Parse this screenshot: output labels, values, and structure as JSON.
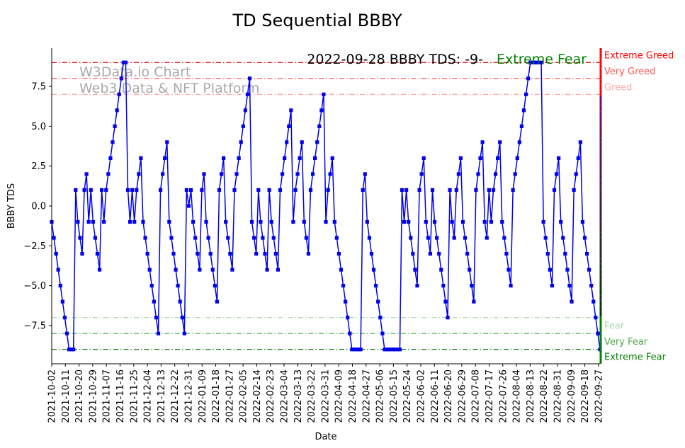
{
  "chart_data": {
    "type": "line",
    "title": "TD Sequential BBBY",
    "xlabel": "Date",
    "ylabel": "BBBY TDS",
    "ylim": [
      -9.9,
      9.9
    ],
    "yticks": [
      -7.5,
      -5.0,
      -2.5,
      0.0,
      2.5,
      5.0,
      7.5
    ],
    "ytick_labels": [
      "−7.5",
      "−5.0",
      "−2.5",
      "0.0",
      "2.5",
      "5.0",
      "7.5"
    ],
    "xtick_labels": [
      "2021-10-02",
      "2021-10-11",
      "2021-10-20",
      "2021-10-29",
      "2021-11-07",
      "2021-11-16",
      "2021-11-25",
      "2021-12-04",
      "2021-12-13",
      "2021-12-22",
      "2021-12-31",
      "2022-01-09",
      "2022-01-18",
      "2022-01-27",
      "2022-02-05",
      "2022-02-14",
      "2022-02-23",
      "2022-03-04",
      "2022-03-13",
      "2022-03-22",
      "2022-03-31",
      "2022-04-09",
      "2022-04-18",
      "2022-04-27",
      "2022-05-06",
      "2022-05-15",
      "2022-05-24",
      "2022-06-02",
      "2022-06-11",
      "2022-06-20",
      "2022-06-29",
      "2022-07-08",
      "2022-07-17",
      "2022-07-26",
      "2022-08-04",
      "2022-08-13",
      "2022-08-22",
      "2022-08-31",
      "2022-09-09",
      "2022-09-18",
      "2022-09-27"
    ],
    "x_start": "2021-10-02",
    "x_end": "2022-09-28",
    "series": [
      {
        "name": "BBBY TDS",
        "color": "#0000ee",
        "marker": "square",
        "values": [
          -1,
          -2,
          -3,
          -4,
          -5,
          -6,
          -7,
          -8,
          -9,
          -9,
          -9,
          1,
          -1,
          -2,
          -3,
          1,
          2,
          -1,
          1,
          -1,
          -2,
          -3,
          -4,
          1,
          -1,
          1,
          2,
          3,
          4,
          5,
          6,
          7,
          8,
          9,
          9,
          1,
          -1,
          1,
          -1,
          1,
          2,
          3,
          -1,
          -2,
          -3,
          -4,
          -5,
          -6,
          -7,
          -8,
          1,
          2,
          3,
          4,
          -1,
          -2,
          -3,
          -4,
          -5,
          -6,
          -7,
          -8,
          1,
          0,
          1,
          -1,
          -2,
          -3,
          -4,
          1,
          2,
          -1,
          -2,
          -3,
          -4,
          -5,
          -6,
          1,
          2,
          3,
          -1,
          -2,
          -3,
          -4,
          1,
          2,
          3,
          4,
          5,
          6,
          7,
          8,
          -1,
          -2,
          -3,
          1,
          -1,
          -2,
          -3,
          -4,
          1,
          -1,
          -2,
          -3,
          -4,
          1,
          2,
          3,
          4,
          5,
          6,
          -1,
          1,
          2,
          3,
          4,
          -1,
          -2,
          -3,
          1,
          2,
          3,
          4,
          5,
          6,
          7,
          -1,
          1,
          2,
          3,
          -1,
          -2,
          -3,
          -4,
          -5,
          -6,
          -7,
          -8,
          -9,
          -9,
          -9,
          -9,
          -9,
          1,
          2,
          -1,
          -2,
          -3,
          -4,
          -5,
          -6,
          -7,
          -8,
          -9,
          -9,
          -9,
          -9,
          -9,
          -9,
          -9,
          -9,
          1,
          -1,
          1,
          -1,
          -2,
          -3,
          -4,
          -5,
          1,
          2,
          3,
          -1,
          -2,
          -3,
          1,
          -1,
          -2,
          -3,
          -4,
          -5,
          -6,
          -7,
          1,
          -1,
          -2,
          1,
          2,
          3,
          -1,
          -2,
          -3,
          -4,
          -5,
          -6,
          1,
          2,
          3,
          4,
          -1,
          -2,
          1,
          -1,
          1,
          2,
          3,
          4,
          -1,
          -2,
          -3,
          -4,
          -5,
          1,
          2,
          3,
          4,
          5,
          6,
          7,
          8,
          9,
          9,
          9,
          9,
          9,
          9,
          -1,
          -2,
          -3,
          -4,
          -5,
          1,
          2,
          3,
          -1,
          -2,
          -3,
          -4,
          -5,
          -6,
          1,
          2,
          3,
          4,
          -1,
          -2,
          -3,
          -4,
          -5,
          -6,
          -7,
          -8,
          -9
        ]
      }
    ],
    "levels": [
      {
        "name": "Extreme Greed",
        "value": 9,
        "color": "#ff0000",
        "line_color": "#e00000"
      },
      {
        "name": "Very Greed",
        "value": 8,
        "color": "#ff5555",
        "line_color": "#ff4040"
      },
      {
        "name": "Greed",
        "value": 7,
        "color": "#ffaaaa",
        "line_color": "#ff9999"
      },
      {
        "name": "Fear",
        "value": -7,
        "color": "#a8d8a8",
        "line_color": "#a8d8a8"
      },
      {
        "name": "Very Fear",
        "value": -8,
        "color": "#4aa84a",
        "line_color": "#4aa84a"
      },
      {
        "name": "Extreme Fear",
        "value": -9,
        "color": "#008000",
        "line_color": "#007000"
      }
    ],
    "annotation": "2022-09-28 BBBY TDS: -9-",
    "annotation_status": "Extreme Fear",
    "annotation_status_color": "#008000",
    "watermark_line1": "W3Data.io Chart",
    "watermark_line2": "Web3 Data & NFT Platform"
  }
}
